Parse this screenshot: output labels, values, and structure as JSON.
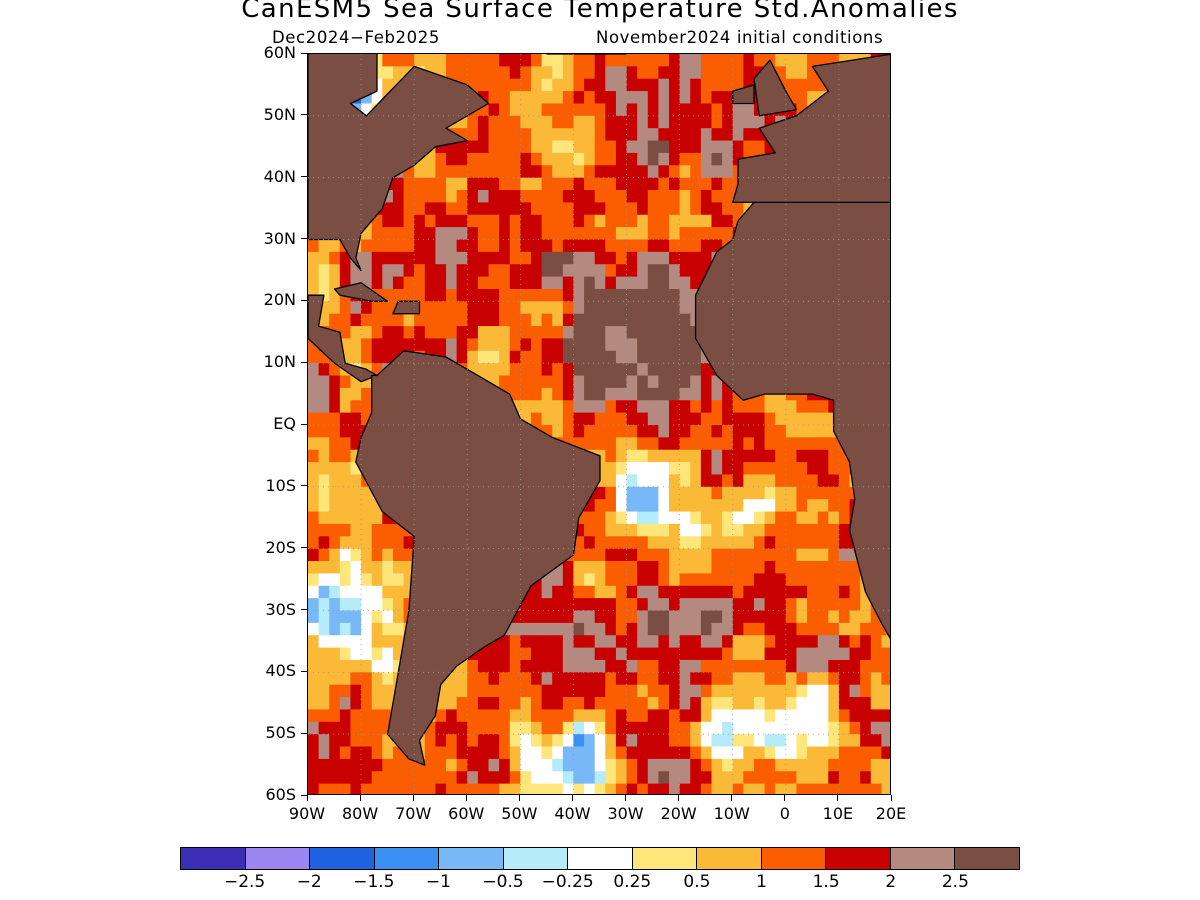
{
  "title": "CanESM5 Sea Surface Temperature Std.Anomalies",
  "subtitle_left": "Dec2024−Feb2025",
  "subtitle_right": "November2024 initial conditions",
  "lat_labels": [
    "60N",
    "50N",
    "40N",
    "30N",
    "20N",
    "10N",
    "EQ",
    "10S",
    "20S",
    "30S",
    "40S",
    "50S",
    "60S"
  ],
  "lon_labels": [
    "90W",
    "80W",
    "70W",
    "60W",
    "50W",
    "40W",
    "30W",
    "20W",
    "10W",
    "0",
    "10E",
    "20E"
  ],
  "colorbar": {
    "colors": [
      "#3a2fb6",
      "#9c87f2",
      "#1f63e0",
      "#3c8ff2",
      "#78b8f6",
      "#b4ecfa",
      "#ffffff",
      "#ffe67a",
      "#fbb938",
      "#fb5e00",
      "#c80000",
      "#b48a80",
      "#7a4e42"
    ],
    "labels": [
      "−2.5",
      "−2",
      "−1.5",
      "−1",
      "−0.5",
      "−0.25",
      "0.25",
      "0.5",
      "1",
      "1.5",
      "2",
      "2.5"
    ]
  },
  "map": {
    "lat_range": [
      -60,
      60
    ],
    "lon_range": [
      -90,
      20
    ],
    "grid_spacing_deg": 10,
    "grid": true,
    "land_color": "#7a4e42",
    "coastline_color": "#000000"
  }
}
